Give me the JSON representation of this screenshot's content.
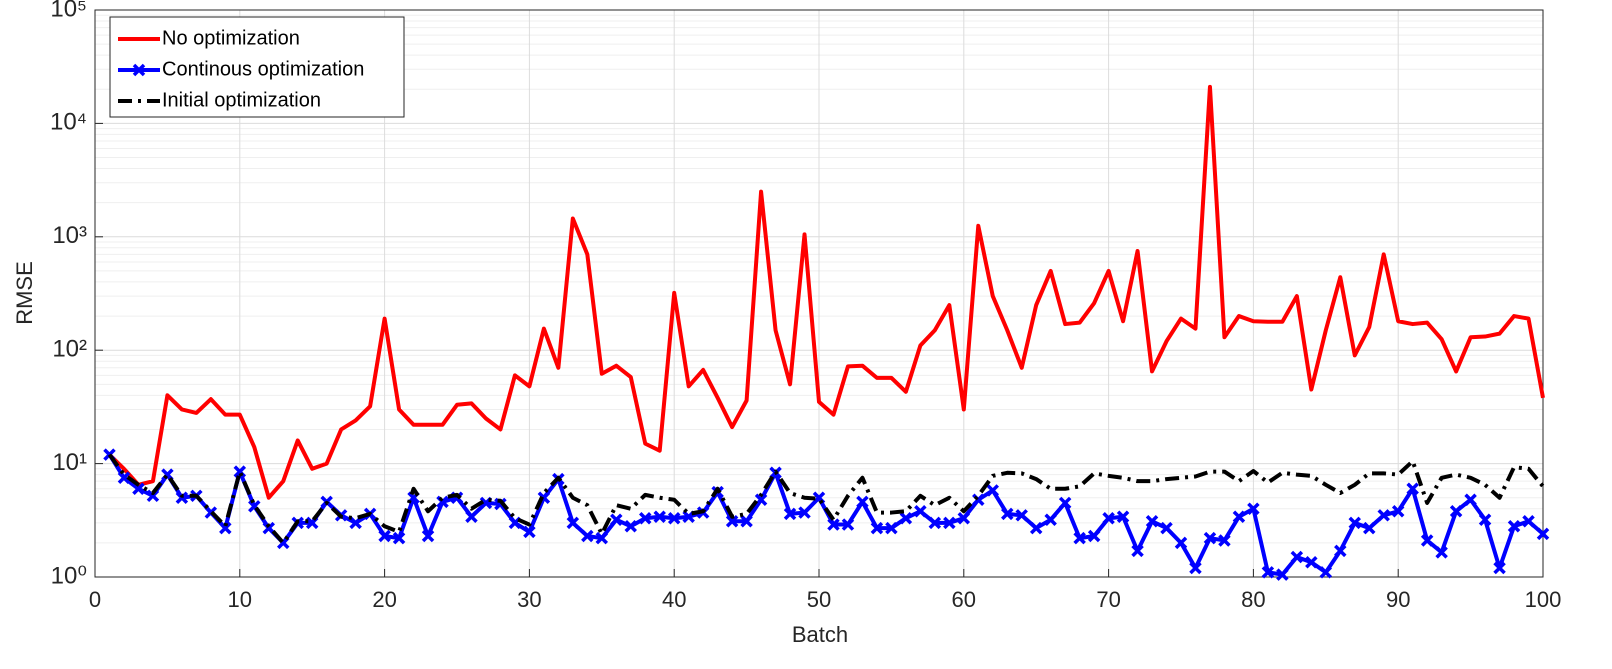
{
  "chart_data": {
    "type": "line",
    "xlabel": "Batch",
    "ylabel": "RMSE",
    "x": [
      1,
      2,
      3,
      4,
      5,
      6,
      7,
      8,
      9,
      10,
      11,
      12,
      13,
      14,
      15,
      16,
      17,
      18,
      19,
      20,
      21,
      22,
      23,
      24,
      25,
      26,
      27,
      28,
      29,
      30,
      31,
      32,
      33,
      34,
      35,
      36,
      37,
      38,
      39,
      40,
      41,
      42,
      43,
      44,
      45,
      46,
      47,
      48,
      49,
      50,
      51,
      52,
      53,
      54,
      55,
      56,
      57,
      58,
      59,
      60,
      61,
      62,
      63,
      64,
      65,
      66,
      67,
      68,
      69,
      70,
      71,
      72,
      73,
      74,
      75,
      76,
      77,
      78,
      79,
      80,
      81,
      82,
      83,
      84,
      85,
      86,
      87,
      88,
      89,
      90,
      91,
      92,
      93,
      94,
      95,
      96,
      97,
      98,
      99,
      100
    ],
    "series": [
      {
        "name": "No optimization",
        "color": "#ff0000",
        "style": "solid",
        "marker": "none",
        "values": [
          12,
          9,
          6.5,
          7,
          40,
          30,
          28,
          37,
          27,
          27,
          14,
          5,
          7,
          16,
          9,
          10,
          20,
          24,
          32,
          190,
          30,
          22,
          22,
          22,
          33,
          34,
          25,
          20,
          60,
          48,
          155,
          70,
          1450,
          700,
          62,
          73,
          58,
          15,
          13,
          320,
          48,
          67,
          38,
          21,
          36,
          2500,
          150,
          50,
          1050,
          35,
          27,
          72,
          73,
          57,
          57,
          43,
          110,
          150,
          250,
          30,
          1250,
          300,
          150,
          70,
          250,
          500,
          170,
          175,
          260,
          500,
          180,
          750,
          65,
          120,
          190,
          155,
          21000,
          130,
          200,
          180,
          178,
          178,
          300,
          45,
          150,
          440,
          90,
          160,
          700,
          180,
          170,
          175,
          125,
          65,
          130,
          132,
          140,
          200,
          190,
          38
        ]
      },
      {
        "name": "Continous optimization",
        "color": "#0000ff",
        "style": "solid",
        "marker": "x",
        "values": [
          12,
          7.5,
          6,
          5.2,
          8,
          5,
          5.2,
          3.7,
          2.7,
          8.5,
          4.2,
          2.7,
          2,
          3,
          3,
          4.6,
          3.5,
          3,
          3.6,
          2.3,
          2.2,
          5,
          2.3,
          4.6,
          5,
          3.4,
          4.5,
          4.4,
          3,
          2.5,
          5,
          7.3,
          3,
          2.3,
          2.2,
          3.2,
          2.8,
          3.3,
          3.4,
          3.3,
          3.4,
          3.7,
          5.6,
          3.1,
          3.1,
          4.8,
          8.3,
          3.6,
          3.7,
          5,
          2.9,
          2.9,
          4.6,
          2.7,
          2.7,
          3.3,
          3.8,
          3,
          3,
          3.3,
          4.8,
          5.8,
          3.6,
          3.5,
          2.7,
          3.2,
          4.5,
          2.2,
          2.3,
          3.3,
          3.4,
          1.7,
          3.1,
          2.7,
          2,
          1.2,
          2.2,
          2.1,
          3.4,
          4,
          1.1,
          1.05,
          1.5,
          1.35,
          1.1,
          1.7,
          3,
          2.7,
          3.5,
          3.8,
          6,
          2.1,
          1.65,
          3.8,
          4.8,
          3.2,
          1.2,
          2.8,
          3.1,
          2.4
        ]
      },
      {
        "name": "Initial optimization",
        "color": "#000000",
        "style": "dashdot",
        "marker": "none",
        "values": [
          12,
          8,
          6.5,
          5.5,
          8,
          5.2,
          5.2,
          3.8,
          2.8,
          8.5,
          4.3,
          2.8,
          2,
          3.1,
          3.1,
          4.5,
          3.4,
          3.3,
          3.6,
          2.8,
          2.5,
          6,
          3.8,
          5,
          5.3,
          4,
          4.8,
          4.7,
          3.3,
          2.9,
          5.5,
          7.5,
          5,
          4.3,
          2.4,
          4.3,
          4,
          5.3,
          5,
          4.8,
          3.6,
          3.8,
          6,
          3.4,
          3.6,
          5.3,
          8.5,
          5.5,
          5,
          4.9,
          3.2,
          5.2,
          7.5,
          3.7,
          3.7,
          3.8,
          5.2,
          4.3,
          5,
          3.8,
          5.2,
          7.8,
          8.3,
          8.2,
          7.3,
          6,
          6,
          6.3,
          8.2,
          7.8,
          7.5,
          7,
          7,
          7.3,
          7.5,
          7.7,
          8.5,
          8.5,
          7,
          8.6,
          6.8,
          8.3,
          8,
          7.8,
          6.5,
          5.5,
          6.5,
          8.2,
          8.2,
          8,
          10.5,
          4.5,
          7.5,
          8,
          7.5,
          6.5,
          5,
          9.3,
          9,
          6.3
        ]
      }
    ],
    "xlim": [
      0,
      100
    ],
    "xticks": [
      0,
      10,
      20,
      30,
      40,
      50,
      60,
      70,
      80,
      90,
      100
    ],
    "ylim": [
      1,
      100000
    ],
    "ylog": true,
    "yticks": [
      {
        "value": 1,
        "label": "10⁰"
      },
      {
        "value": 10,
        "label": "10¹"
      },
      {
        "value": 100,
        "label": "10²"
      },
      {
        "value": 1000,
        "label": "10³"
      },
      {
        "value": 10000,
        "label": "10⁴"
      },
      {
        "value": 100000,
        "label": "10⁵"
      }
    ],
    "grid": true,
    "legend": "upper left"
  }
}
